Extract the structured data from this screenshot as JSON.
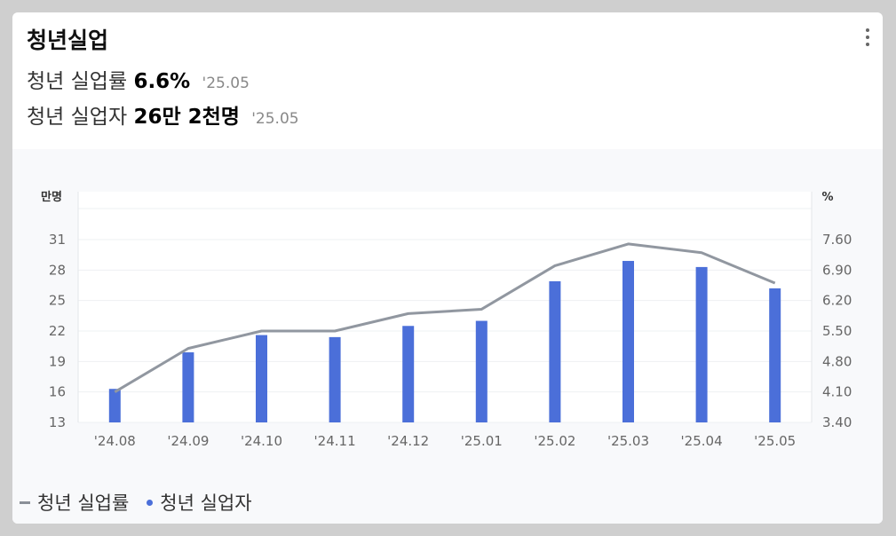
{
  "card": {
    "title": "청년실업",
    "menu_icon": "more-vertical-icon"
  },
  "stats": [
    {
      "label": "청년 실업률",
      "value": "6.6%",
      "date": "'25.05"
    },
    {
      "label": "청년 실업자",
      "value": "26만 2천명",
      "date": "'25.05"
    }
  ],
  "legend": {
    "rate_label": "청년 실업률",
    "count_label": "청년 실업자"
  },
  "colors": {
    "bar": "#4b6fd9",
    "line": "#9197a0"
  },
  "chart_data": {
    "type": "bar",
    "categories": [
      "'24.08",
      "'24.09",
      "'24.10",
      "'24.11",
      "'24.12",
      "'25.01",
      "'25.02",
      "'25.03",
      "'25.04",
      "'25.05"
    ],
    "series": [
      {
        "name": "청년 실업자",
        "type": "bar",
        "axis": "left",
        "values": [
          16.3,
          19.9,
          21.6,
          21.4,
          22.5,
          23.0,
          26.9,
          28.9,
          28.3,
          26.2
        ]
      },
      {
        "name": "청년 실업률",
        "type": "line",
        "axis": "right",
        "values": [
          4.1,
          5.1,
          5.5,
          5.5,
          5.9,
          6.0,
          7.0,
          7.5,
          7.3,
          6.6
        ]
      }
    ],
    "y_left": {
      "unit": "만명",
      "ticks": [
        13,
        16,
        19,
        22,
        25,
        28,
        31
      ],
      "range": [
        13,
        31
      ]
    },
    "y_right": {
      "unit": "%",
      "ticks": [
        "3.40",
        "4.10",
        "4.80",
        "5.50",
        "6.20",
        "6.90",
        "7.60"
      ],
      "range": [
        3.4,
        7.6
      ]
    },
    "grid": true,
    "legend_position": "bottom-left"
  }
}
